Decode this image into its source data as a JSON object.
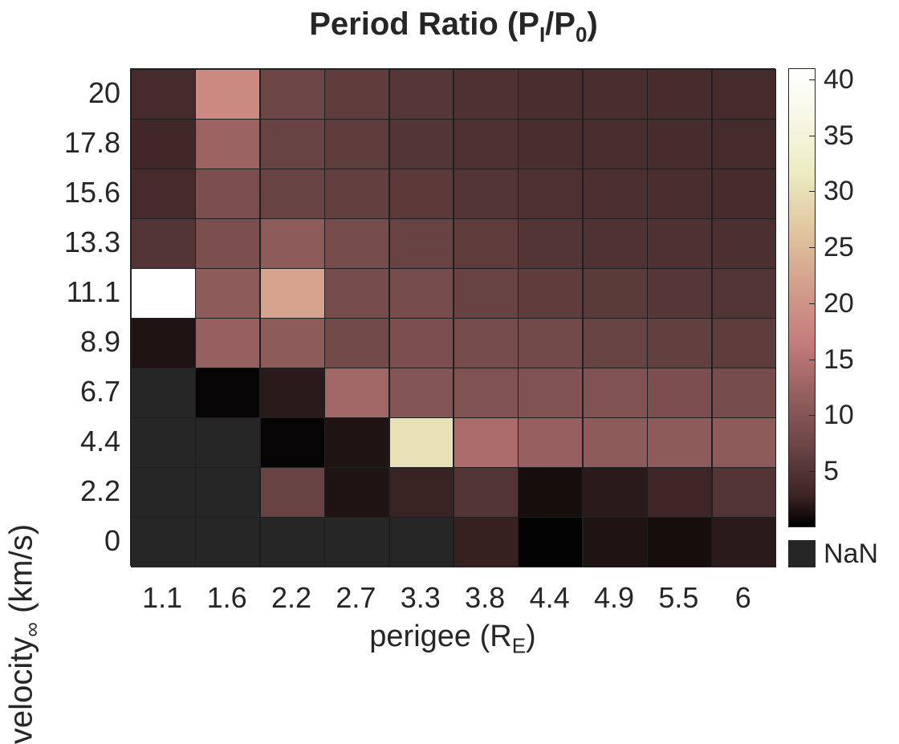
{
  "chart_data": {
    "type": "heatmap",
    "title": "Period Ratio (P",
    "title_sub1": "I",
    "title_mid": "/P",
    "title_sub2": "0",
    "title_end": ")",
    "xlabel": "perigee (R",
    "xlabel_sub": "E",
    "xlabel_end": ")",
    "ylabel": "velocity",
    "ylabel_sub": "∞",
    "ylabel_end": " (km/s)",
    "x_categories": [
      "1.1",
      "1.6",
      "2.2",
      "2.7",
      "3.3",
      "3.8",
      "4.4",
      "4.9",
      "5.5",
      "6"
    ],
    "y_categories": [
      "20",
      "17.8",
      "15.6",
      "13.3",
      "11.1",
      "8.9",
      "6.7",
      "4.4",
      "2.2",
      "0"
    ],
    "values": [
      [
        3.5,
        18.5,
        7.5,
        6.2,
        5.2,
        4.5,
        4.0,
        4.0,
        3.8,
        3.5
      ],
      [
        3.2,
        12.5,
        7.0,
        6.0,
        5.0,
        4.5,
        4.0,
        4.0,
        3.8,
        3.5
      ],
      [
        3.5,
        9.0,
        7.0,
        6.5,
        5.8,
        5.0,
        4.5,
        4.2,
        4.0,
        3.8
      ],
      [
        5.0,
        9.0,
        11.0,
        8.5,
        7.0,
        6.0,
        5.0,
        4.7,
        4.5,
        4.2
      ],
      [
        41.0,
        11.0,
        22.0,
        8.5,
        8.5,
        7.0,
        6.2,
        5.7,
        5.2,
        5.0
      ],
      [
        1.5,
        12.0,
        11.0,
        8.0,
        9.0,
        8.5,
        8.0,
        7.0,
        6.5,
        6.0
      ],
      [
        null,
        0.3,
        2.0,
        13.0,
        10.0,
        9.5,
        9.5,
        9.5,
        9.0,
        8.5
      ],
      [
        null,
        null,
        0.3,
        1.5,
        30.0,
        14.0,
        12.0,
        11.0,
        11.0,
        11.0
      ],
      [
        null,
        null,
        7.0,
        1.5,
        2.7,
        5.0,
        1.0,
        2.0,
        3.0,
        5.0
      ],
      [
        null,
        null,
        null,
        null,
        null,
        2.5,
        0.2,
        1.5,
        1.0,
        2.0
      ]
    ],
    "colorbar": {
      "min": 0,
      "max": 41,
      "ticks": [
        5,
        10,
        15,
        20,
        25,
        30,
        35,
        40
      ],
      "nan_label": "NaN",
      "nan_color": "#262626"
    },
    "colormap": "pink"
  }
}
